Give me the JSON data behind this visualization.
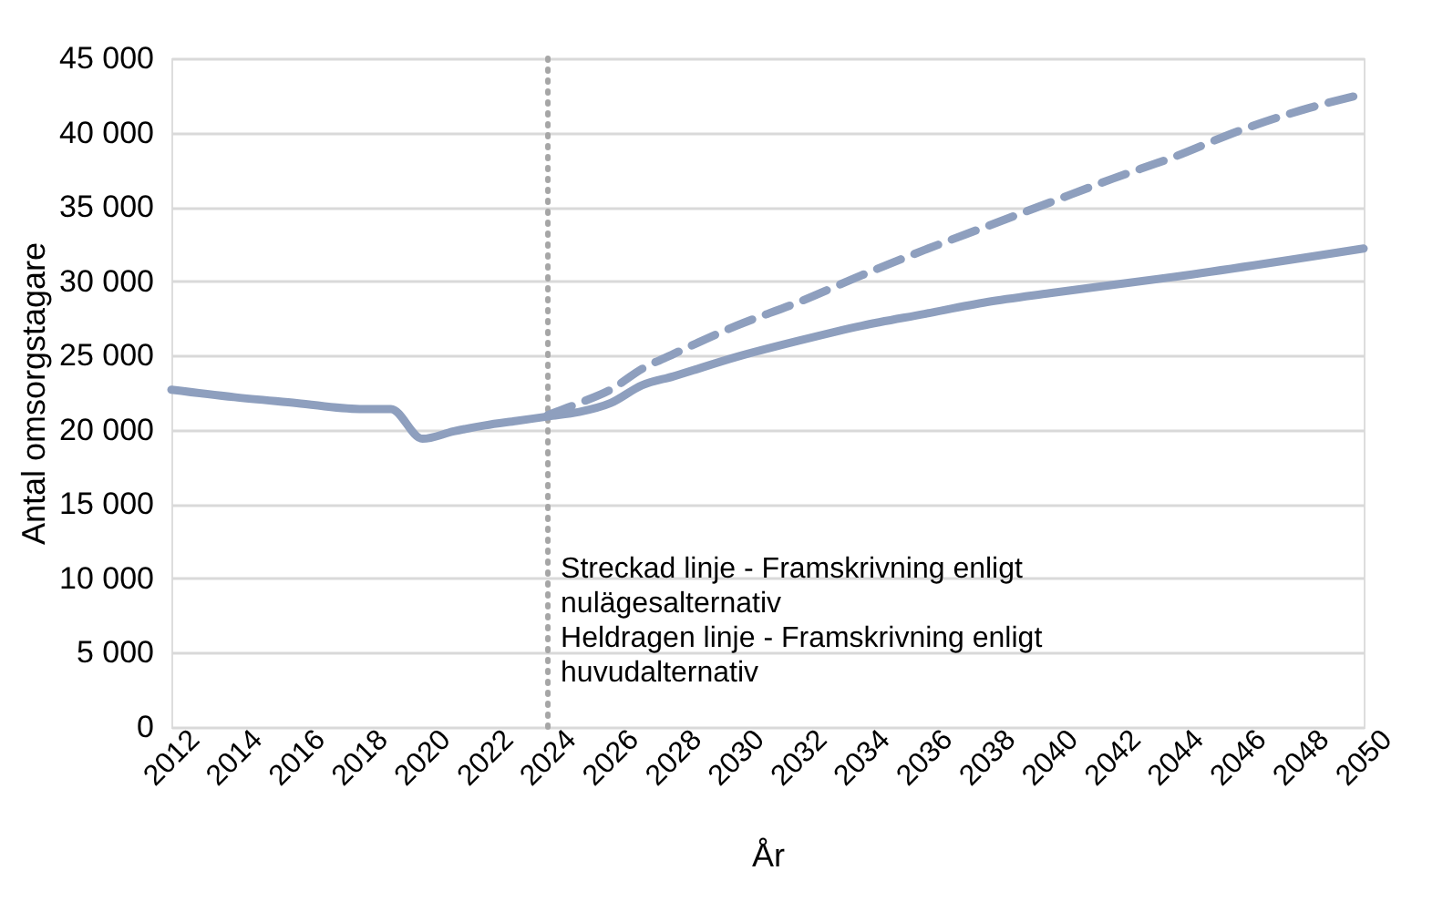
{
  "chart_data": {
    "type": "line",
    "xlabel": "År",
    "ylabel": "Antal omsorgstagare",
    "x": [
      2012,
      2014,
      2016,
      2018,
      2019,
      2020,
      2021,
      2022,
      2023,
      2024,
      2025,
      2026,
      2027,
      2028,
      2030,
      2032,
      2034,
      2036,
      2038,
      2040,
      2044,
      2050
    ],
    "series": [
      {
        "color": "#8e9fbe",
        "line_style": "solid",
        "values": [
          22700,
          22200,
          21800,
          21400,
          21400,
          19400,
          19900,
          20300,
          20600,
          20900,
          21200,
          21800,
          23000,
          23600,
          24900,
          26000,
          27000,
          27800,
          28600,
          29200,
          30300,
          32200
        ]
      },
      {
        "color": "#8e9fbe",
        "line_style": "dashed",
        "x": [
          2024,
          2025,
          2026,
          2027,
          2028,
          2030,
          2032,
          2034,
          2036,
          2038,
          2040,
          2042,
          2044,
          2046,
          2048,
          2050
        ],
        "values": [
          21000,
          21800,
          22700,
          24100,
          25100,
          27000,
          28600,
          30400,
          32100,
          33700,
          35300,
          36900,
          38400,
          40100,
          41500,
          42600
        ]
      }
    ],
    "xlim": [
      2012,
      2050
    ],
    "xticks": [
      2012,
      2014,
      2016,
      2018,
      2020,
      2022,
      2024,
      2026,
      2028,
      2030,
      2032,
      2034,
      2036,
      2038,
      2040,
      2042,
      2044,
      2046,
      2048,
      2050
    ],
    "ylim": [
      0,
      45000
    ],
    "yticks": [
      0,
      {
        "value": 5000,
        "label": "5 000"
      },
      {
        "value": 10000,
        "label": "10 000"
      },
      {
        "value": 15000,
        "label": "15 000"
      },
      {
        "value": 20000,
        "label": "20 000"
      },
      {
        "value": 25000,
        "label": "25 000"
      },
      {
        "value": 30000,
        "label": "30 000"
      },
      {
        "value": 35000,
        "label": "35 000"
      },
      {
        "value": 40000,
        "label": "40 000"
      },
      {
        "value": 45000,
        "label": "45 000"
      }
    ],
    "grid": "y",
    "ref_lines": [
      {
        "axis": "x",
        "value": 2024,
        "color": "#a6a6a6",
        "line_style": "dotted"
      }
    ],
    "annotations": [
      "Streckad linje - Framskrivning enligt\nnulägesalternativ",
      "Heldragen linje - Framskrivning enligt\nhuvudalternativ"
    ]
  }
}
